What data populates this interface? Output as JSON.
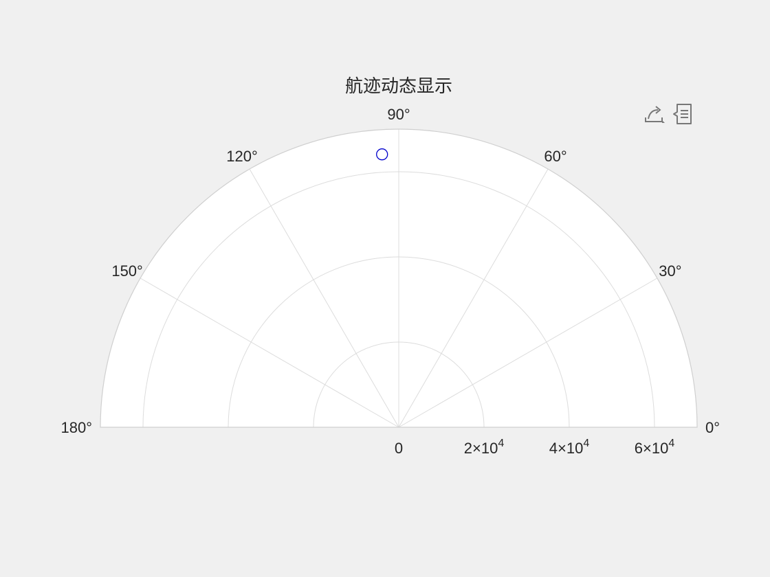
{
  "chart_data": {
    "type": "polar",
    "title": "航迹动态显示",
    "theta_range_deg": [
      0,
      180
    ],
    "theta_ticks": [
      0,
      30,
      60,
      90,
      120,
      150,
      180
    ],
    "theta_tick_labels": [
      "0°",
      "30°",
      "60°",
      "90°",
      "120°",
      "150°",
      "180°"
    ],
    "r_range": [
      0,
      70000
    ],
    "r_ticks": [
      0,
      20000,
      40000,
      60000
    ],
    "r_tick_labels": [
      {
        "mantissa": "0",
        "exponent": ""
      },
      {
        "mantissa": "2×10",
        "exponent": "4"
      },
      {
        "mantissa": "4×10",
        "exponent": "4"
      },
      {
        "mantissa": "6×10",
        "exponent": "4"
      }
    ],
    "grid": true,
    "series": [
      {
        "marker": "circle",
        "color": "#0000cc",
        "points": [
          {
            "theta_deg": 93.5,
            "r": 64200
          }
        ]
      }
    ]
  },
  "toolbar": {
    "icons": [
      "export-icon",
      "data-tip-icon"
    ]
  }
}
